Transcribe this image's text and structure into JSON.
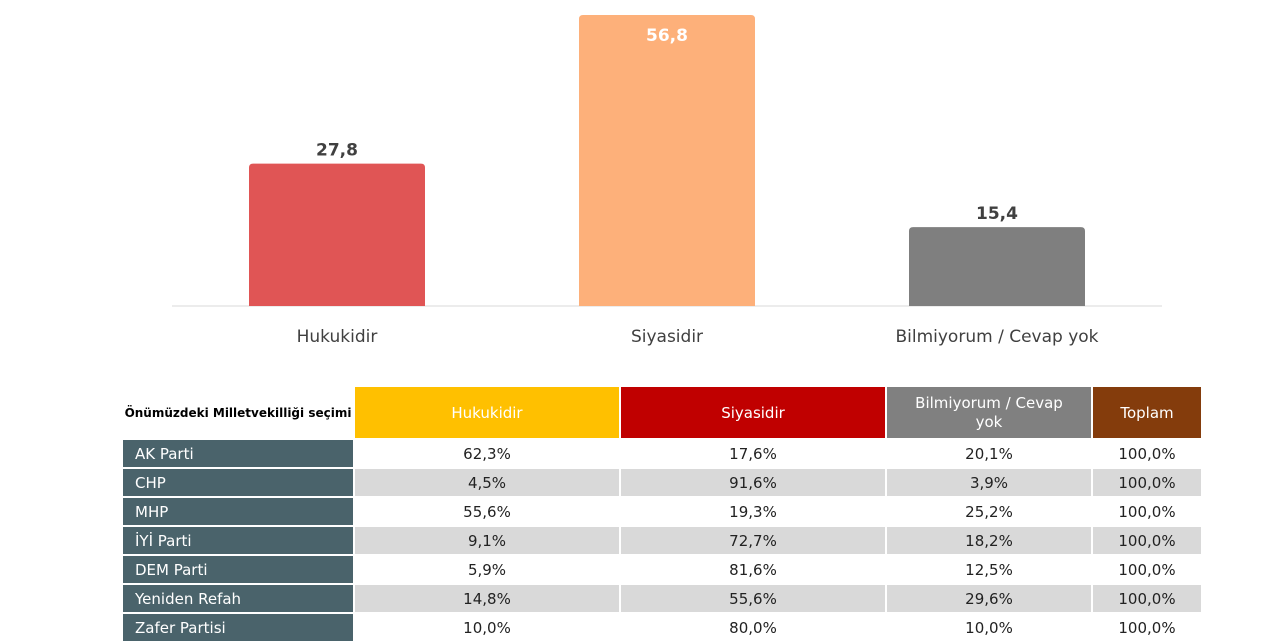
{
  "chart_data": {
    "type": "bar",
    "categories": [
      "Hukukidir",
      "Siyasidir",
      "Bilmiyorum / Cevap yok"
    ],
    "values": [
      27.8,
      56.8,
      15.4
    ],
    "value_labels": [
      "27,8",
      "56,8",
      "15,4"
    ],
    "colors": [
      "#e05555",
      "#fdb07a",
      "#7f7f7f"
    ],
    "ylim": [
      0,
      56.8
    ],
    "grid": false
  },
  "table": {
    "corner": "Önümüzdeki Milletvekilliği seçimi",
    "headers": [
      "Hukukidir",
      "Siyasidir",
      "Bilmiyorum / Cevap yok",
      "Toplam"
    ],
    "header_colors": [
      "#ffc000",
      "#c00000",
      "#808080",
      "#843c0c"
    ],
    "rows": [
      {
        "label": "AK Parti",
        "values": [
          "62,3%",
          "17,6%",
          "20,1%",
          "100,0%"
        ]
      },
      {
        "label": "CHP",
        "values": [
          "4,5%",
          "91,6%",
          "3,9%",
          "100,0%"
        ]
      },
      {
        "label": "MHP",
        "values": [
          "55,6%",
          "19,3%",
          "25,2%",
          "100,0%"
        ]
      },
      {
        "label": "İYİ Parti",
        "values": [
          "9,1%",
          "72,7%",
          "18,2%",
          "100,0%"
        ]
      },
      {
        "label": "DEM Parti",
        "values": [
          "5,9%",
          "81,6%",
          "12,5%",
          "100,0%"
        ]
      },
      {
        "label": "Yeniden Refah",
        "values": [
          "14,8%",
          "55,6%",
          "29,6%",
          "100,0%"
        ]
      },
      {
        "label": "Zafer Partisi",
        "values": [
          "10,0%",
          "80,0%",
          "10,0%",
          "100,0%"
        ]
      }
    ]
  }
}
